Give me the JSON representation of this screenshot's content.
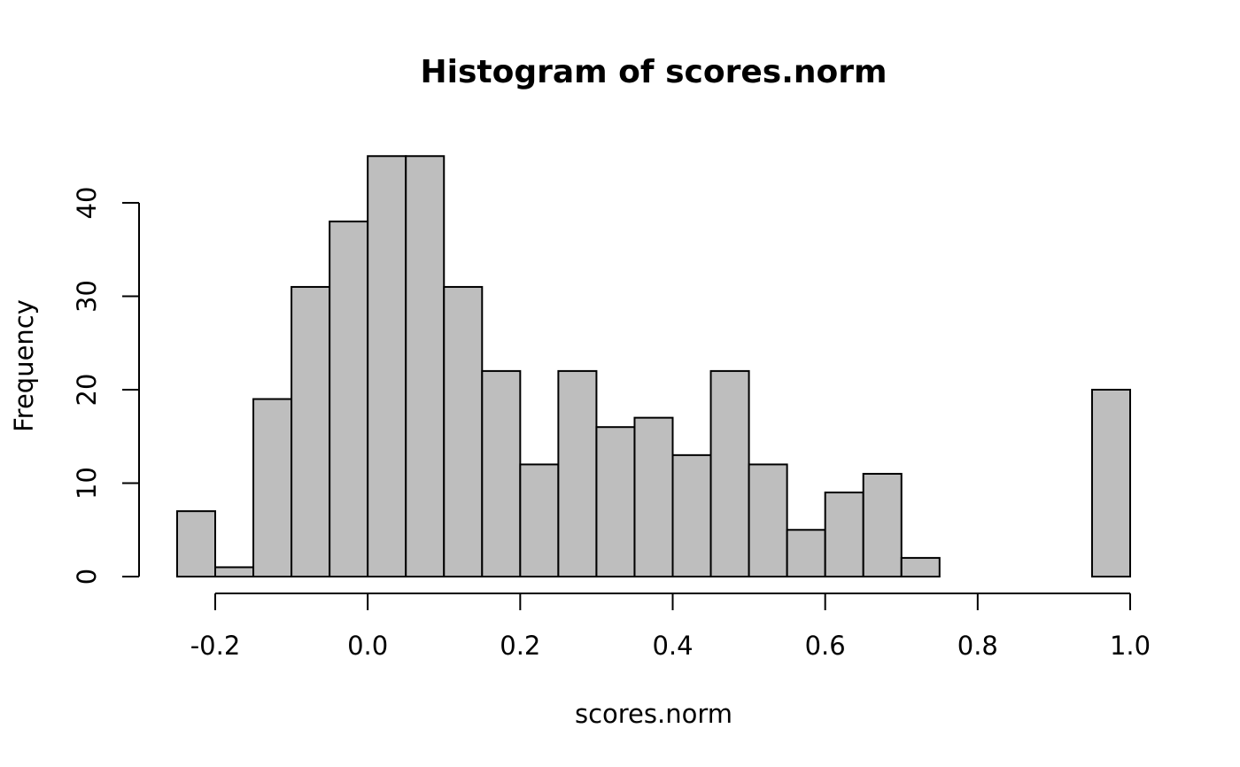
{
  "chart_data": {
    "type": "bar",
    "title": "Histogram of scores.norm",
    "xlabel": "scores.norm",
    "ylabel": "Frequency",
    "xlim": [
      -0.25,
      1.0
    ],
    "ylim": [
      0,
      45
    ],
    "x_ticks": [
      -0.2,
      0.0,
      0.2,
      0.4,
      0.6,
      0.8,
      1.0
    ],
    "x_tick_labels": [
      "-0.2",
      "0.0",
      "0.2",
      "0.4",
      "0.6",
      "0.8",
      "1.0"
    ],
    "y_ticks": [
      0,
      10,
      20,
      30,
      40
    ],
    "y_tick_labels": [
      "0",
      "10",
      "20",
      "30",
      "40"
    ],
    "bin_edges": [
      -0.25,
      -0.2,
      -0.15,
      -0.1,
      -0.05,
      0.0,
      0.05,
      0.1,
      0.15,
      0.2,
      0.25,
      0.3,
      0.35,
      0.4,
      0.45,
      0.5,
      0.55,
      0.6,
      0.65,
      0.7,
      0.75,
      0.8,
      0.85,
      0.9,
      0.95,
      1.0
    ],
    "values": [
      7,
      1,
      19,
      31,
      38,
      45,
      45,
      31,
      22,
      12,
      22,
      16,
      17,
      13,
      22,
      12,
      5,
      9,
      11,
      2,
      0,
      0,
      0,
      0,
      20
    ],
    "bar_fill": "#bebebe",
    "bar_stroke": "#000000",
    "grid": false
  }
}
